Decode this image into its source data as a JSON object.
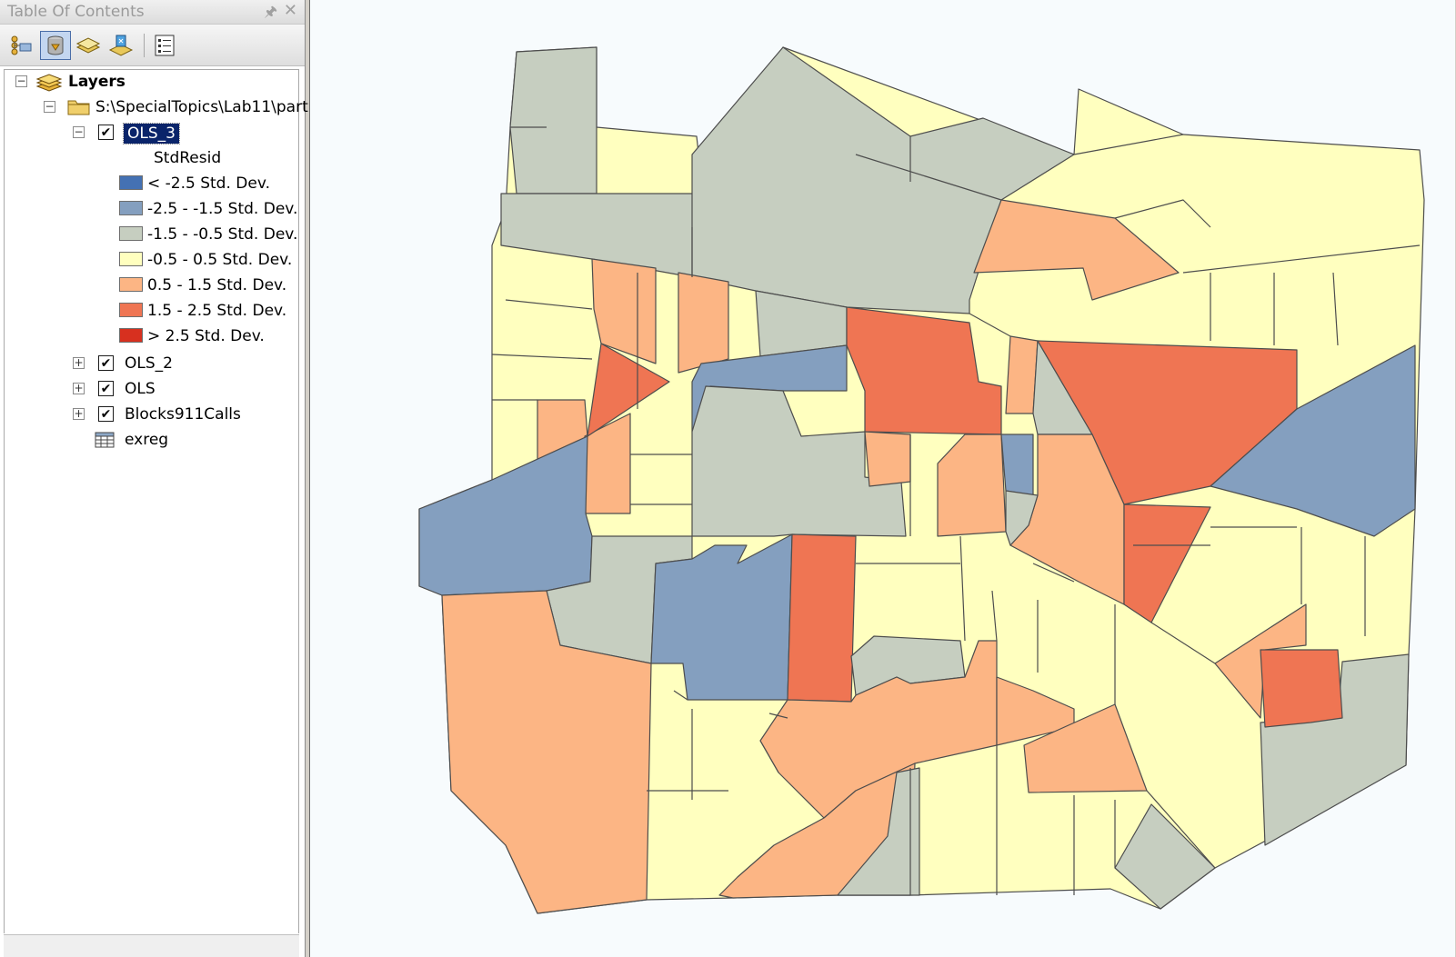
{
  "toc": {
    "title": "Table Of Contents",
    "pin_icon": "pin-icon",
    "close_icon": "close-icon",
    "toolbar": [
      {
        "name": "list-by-drawing-order-button",
        "icon": "drawing-order-icon"
      },
      {
        "name": "list-by-source-button",
        "icon": "source-icon",
        "active": true
      },
      {
        "name": "list-by-visibility-button",
        "icon": "visibility-icon"
      },
      {
        "name": "list-by-selection-button",
        "icon": "selection-icon"
      },
      {
        "name": "options-button",
        "icon": "options-icon"
      }
    ],
    "root_label": "Layers",
    "folder_label": "S:\\SpecialTopics\\Lab11\\part",
    "layers": [
      {
        "label": "OLS_3",
        "checked": true,
        "expanded": true,
        "selected": true
      },
      {
        "label": "OLS_2",
        "checked": true,
        "expanded": false
      },
      {
        "label": "OLS",
        "checked": true,
        "expanded": false
      },
      {
        "label": "Blocks911Calls",
        "checked": true,
        "expanded": false
      }
    ],
    "legend_field": "StdResid",
    "legend": [
      {
        "label": "< -2.5 Std. Dev.",
        "color": "#4471b3"
      },
      {
        "label": "-2.5 - -1.5 Std. Dev.",
        "color": "#849fbf"
      },
      {
        "label": "-1.5 - -0.5 Std. Dev.",
        "color": "#c6cec0"
      },
      {
        "label": "-0.5 - 0.5 Std. Dev.",
        "color": "#ffffbf"
      },
      {
        "label": "0.5 - 1.5 Std. Dev.",
        "color": "#fcb584"
      },
      {
        "label": "1.5 - 2.5 Std. Dev.",
        "color": "#ef7553"
      },
      {
        "label": "> 2.5 Std. Dev.",
        "color": "#d7301f"
      }
    ],
    "table_label": "exreg"
  },
  "map": {
    "background": "#f7fbfd",
    "outline_color": "#4d4d4d"
  }
}
